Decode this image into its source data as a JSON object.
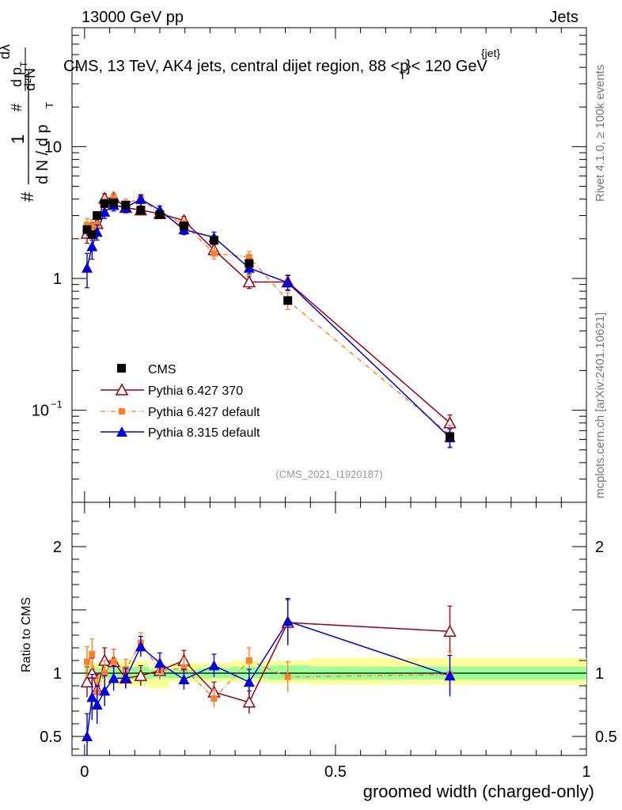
{
  "header": {
    "energy": "13000 GeV pp",
    "process": "Jets",
    "title": "CMS, 13 TeV, AK4 jets, central dijet region, 88 <p",
    "title_sup": "{jet}",
    "title_sub": "T",
    "title_end": "}< 120 GeV",
    "side_rivet": "Rivet 4.1.0, ≥ 100k events",
    "side_site": "mcplots.cern.ch [arXiv:2401.10621]",
    "analysis": "(CMS_2021_I1920187)"
  },
  "ylabel": {
    "hash1": "#",
    "one": "1",
    "dN_over_dpT": "d N / d p",
    "T": "T",
    "d2N": "d²N",
    "hash2": "#",
    "dpT": "d p",
    "dlambda": "dλ"
  },
  "chart_data": [
    {
      "type": "scatter",
      "yscale": "log",
      "ylim": [
        0.02,
        80
      ],
      "xlim": [
        -0.025,
        1.0
      ],
      "xticks": [
        {
          "v": 0,
          "label": "0"
        },
        {
          "v": 0.5,
          "label": "0.5"
        },
        {
          "v": 1,
          "label": "1"
        }
      ],
      "yticks": [
        {
          "v": 0.1,
          "label": "10",
          "exp": "−1"
        },
        {
          "v": 1,
          "label": "1",
          "exp": ""
        },
        {
          "v": 10,
          "label": "10",
          "exp": ""
        }
      ],
      "x": [
        0.005,
        0.015,
        0.025,
        0.04,
        0.058,
        0.082,
        0.112,
        0.15,
        0.198,
        0.258,
        0.328,
        0.405,
        0.728
      ],
      "series": [
        {
          "name": "CMS",
          "color": "#000000",
          "marker": "square",
          "values": [
            2.35,
            2.15,
            3.0,
            3.7,
            3.75,
            3.6,
            3.3,
            3.05,
            2.5,
            1.95,
            1.3,
            0.68,
            0.063
          ],
          "errors": [
            0.15,
            0.15,
            0.15,
            0.2,
            0.2,
            0.2,
            0.15,
            0.12,
            0.12,
            0.12,
            0.08,
            0.05,
            0.006
          ]
        },
        {
          "name": "Pythia 6.427 370",
          "color": "#990011",
          "marker": "triangle-open",
          "line": "solid",
          "values": [
            2.2,
            2.3,
            2.6,
            4.05,
            4.1,
            3.45,
            3.3,
            3.1,
            2.75,
            1.65,
            0.94,
            0.94,
            0.08
          ],
          "errors": [
            0.35,
            0.35,
            0.35,
            0.35,
            0.35,
            0.3,
            0.25,
            0.2,
            0.2,
            0.15,
            0.1,
            0.12,
            0.012
          ]
        },
        {
          "name": "Pythia 6.427 default",
          "color": "#ff7f2a",
          "marker": "square-small",
          "line": "dashdot",
          "values": [
            2.55,
            2.5,
            2.55,
            3.7,
            4.1,
            3.7,
            4.05,
            3.1,
            2.6,
            1.55,
            1.45,
            0.68,
            0.065
          ],
          "errors": [
            0.3,
            0.3,
            0.3,
            0.35,
            0.35,
            0.3,
            0.3,
            0.2,
            0.2,
            0.15,
            0.15,
            0.1,
            0.012
          ]
        },
        {
          "name": "Pythia 8.315 default",
          "color": "#0000dd",
          "marker": "triangle",
          "line": "solid",
          "values": [
            1.2,
            1.75,
            2.25,
            3.2,
            3.6,
            3.45,
            4.0,
            3.3,
            2.35,
            2.05,
            1.2,
            0.93,
            0.062
          ],
          "errors": [
            0.35,
            0.35,
            0.3,
            0.35,
            0.35,
            0.3,
            0.3,
            0.25,
            0.2,
            0.2,
            0.12,
            0.12,
            0.01
          ]
        }
      ],
      "legend_position": "left-middle"
    },
    {
      "type": "scatter",
      "ylabel": "Ratio to CMS",
      "xlabel": "groomed width (charged-only)",
      "ylim": [
        0.35,
        2.35
      ],
      "yticks": [
        {
          "v": 0.5,
          "label": "0.5"
        },
        {
          "v": 1,
          "label": "1"
        },
        {
          "v": 2,
          "label": "2"
        }
      ],
      "bins": [
        [
          0.0,
          0.01
        ],
        [
          0.01,
          0.02
        ],
        [
          0.02,
          0.03
        ],
        [
          0.03,
          0.05
        ],
        [
          0.05,
          0.07
        ],
        [
          0.07,
          0.095
        ],
        [
          0.095,
          0.13
        ],
        [
          0.13,
          0.17
        ],
        [
          0.17,
          0.225
        ],
        [
          0.225,
          0.29
        ],
        [
          0.29,
          0.365
        ],
        [
          0.365,
          0.45
        ],
        [
          0.45,
          1.0
        ]
      ],
      "band_yellow": [
        [
          0.92,
          1.08
        ],
        [
          0.92,
          1.08
        ],
        [
          0.92,
          1.08
        ],
        [
          0.92,
          1.08
        ],
        [
          0.9,
          1.1
        ],
        [
          0.9,
          1.1
        ],
        [
          0.9,
          1.1
        ],
        [
          0.88,
          1.05
        ],
        [
          0.93,
          1.08
        ],
        [
          0.93,
          1.08
        ],
        [
          0.93,
          1.1
        ],
        [
          0.92,
          1.1
        ],
        [
          0.91,
          1.12
        ]
      ],
      "band_green": [
        [
          0.96,
          1.04
        ],
        [
          0.96,
          1.04
        ],
        [
          0.96,
          1.04
        ],
        [
          0.96,
          1.04
        ],
        [
          0.95,
          1.05
        ],
        [
          0.95,
          1.05
        ],
        [
          0.95,
          1.05
        ],
        [
          0.96,
          1.03
        ],
        [
          0.96,
          1.03
        ],
        [
          0.96,
          1.04
        ],
        [
          0.96,
          1.05
        ],
        [
          0.95,
          1.06
        ],
        [
          0.95,
          1.05
        ]
      ],
      "series": [
        {
          "name": "Pythia 6.427 370",
          "values": [
            0.93,
            1.0,
            0.87,
            1.1,
            1.09,
            0.96,
            0.98,
            1.02,
            1.1,
            0.85,
            0.77,
            1.4,
            1.33
          ],
          "errors": [
            0.12,
            0.12,
            0.12,
            0.1,
            0.1,
            0.08,
            0.08,
            0.07,
            0.08,
            0.08,
            0.09,
            0.18,
            0.2
          ]
        },
        {
          "name": "Pythia 6.427 default",
          "values": [
            1.09,
            1.15,
            0.85,
            1.0,
            1.09,
            1.03,
            1.24,
            1.02,
            1.04,
            0.8,
            1.1,
            0.97,
            0.99
          ],
          "errors": [
            0.12,
            0.12,
            0.12,
            0.1,
            0.1,
            0.08,
            0.08,
            0.07,
            0.08,
            0.07,
            0.1,
            0.12,
            0.18
          ]
        },
        {
          "name": "Pythia 8.315 default",
          "values": [
            0.5,
            0.81,
            0.75,
            0.86,
            0.96,
            0.96,
            1.21,
            1.08,
            0.95,
            1.06,
            0.93,
            1.41,
            0.98
          ],
          "errors": [
            0.18,
            0.18,
            0.15,
            0.12,
            0.1,
            0.08,
            0.08,
            0.08,
            0.08,
            0.09,
            0.1,
            0.18,
            0.16
          ]
        }
      ]
    }
  ]
}
